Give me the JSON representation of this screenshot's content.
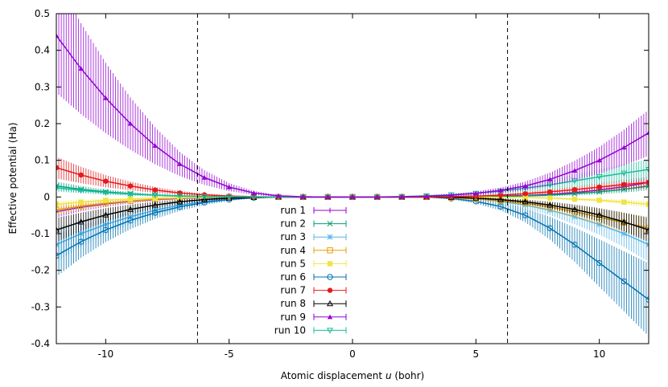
{
  "chart_data": {
    "type": "line",
    "title": "",
    "xlabel": "Atomic displacement u (bohr)",
    "xlabel_parts": {
      "before": "Atomic displacement ",
      "italic": "u",
      "after": " (bohr)"
    },
    "ylabel": "Effective potential (Ha)",
    "xlim": [
      -12,
      12
    ],
    "ylim": [
      -0.4,
      0.5
    ],
    "xticks": [
      -10,
      -5,
      0,
      5,
      10
    ],
    "xtick_labels": [
      "-10",
      "-5",
      "0",
      "5",
      "10"
    ],
    "yticks": [
      -0.4,
      -0.3,
      -0.2,
      -0.1,
      0,
      0.1,
      0.2,
      0.3,
      0.4,
      0.5
    ],
    "ytick_labels": [
      "-0.4",
      "-0.3",
      "-0.2",
      "-0.1",
      "0",
      "0.1",
      "0.2",
      "0.3",
      "0.4",
      "0.5"
    ],
    "grid": false,
    "legend_position": "center",
    "vertical_reference_lines": [
      -6.28,
      6.28
    ],
    "x": [
      -12,
      -11,
      -10,
      -9,
      -8,
      -7,
      -6,
      -5,
      -4,
      -3,
      -2,
      -1,
      0,
      1,
      2,
      3,
      4,
      5,
      6,
      7,
      8,
      9,
      10,
      11,
      12
    ],
    "series": [
      {
        "name": "run 1",
        "color": "#9400d3",
        "marker": "plus",
        "values": [
          -0.04,
          -0.028,
          -0.019,
          -0.012,
          -0.007,
          -0.004,
          -0.002,
          -0.001,
          0,
          0,
          0,
          0,
          0,
          0,
          0,
          0,
          0,
          0.001,
          0.002,
          0.004,
          0.007,
          0.012,
          0.019,
          0.028,
          0.04
        ]
      },
      {
        "name": "run 2",
        "color": "#009e73",
        "marker": "cross",
        "values": [
          0.03,
          0.021,
          0.014,
          0.009,
          0.005,
          0.003,
          0.0015,
          0.0007,
          0.0002,
          0,
          0,
          0,
          0,
          0,
          0,
          0,
          0.0002,
          0.0007,
          0.0015,
          0.003,
          0.005,
          0.009,
          0.014,
          0.021,
          0.03
        ]
      },
      {
        "name": "run 3",
        "color": "#56b4e9",
        "marker": "star",
        "values": [
          -0.13,
          -0.1,
          -0.075,
          -0.054,
          -0.036,
          -0.022,
          -0.012,
          -0.005,
          -0.001,
          0,
          0,
          0,
          0,
          0,
          0,
          0,
          -0.001,
          -0.005,
          -0.012,
          -0.022,
          -0.036,
          -0.054,
          -0.075,
          -0.1,
          -0.13
        ]
      },
      {
        "name": "run 4",
        "color": "#e69f00",
        "marker": "square-open",
        "values": [
          -0.035,
          -0.025,
          -0.017,
          -0.011,
          -0.006,
          -0.003,
          -0.0015,
          -0.0006,
          -0.0001,
          0,
          0,
          0,
          0,
          0,
          0,
          0,
          -0.002,
          -0.005,
          -0.01,
          -0.017,
          -0.027,
          -0.04,
          -0.055,
          -0.07,
          -0.085
        ]
      },
      {
        "name": "run 5",
        "color": "#f0e442",
        "marker": "square-filled",
        "values": [
          -0.02,
          -0.014,
          -0.009,
          -0.006,
          -0.003,
          -0.0015,
          -0.0007,
          -0.0002,
          0,
          0,
          0,
          0,
          0,
          0,
          0,
          0,
          0,
          -0.0002,
          -0.0007,
          -0.0015,
          -0.003,
          -0.006,
          -0.009,
          -0.014,
          -0.02
        ]
      },
      {
        "name": "run 6",
        "color": "#0072b2",
        "marker": "circle-open",
        "values": [
          -0.16,
          -0.122,
          -0.09,
          -0.064,
          -0.043,
          -0.027,
          -0.015,
          -0.007,
          -0.002,
          0,
          0,
          0,
          0,
          0,
          0,
          0,
          -0.004,
          -0.012,
          -0.026,
          -0.05,
          -0.085,
          -0.13,
          -0.18,
          -0.23,
          -0.28
        ]
      },
      {
        "name": "run 7",
        "color": "#e41a1c",
        "marker": "circle-filled",
        "values": [
          0.08,
          0.06,
          0.043,
          0.03,
          0.019,
          0.011,
          0.006,
          0.0025,
          0.0007,
          0,
          0,
          0,
          0,
          0,
          0,
          0,
          0.001,
          0.0025,
          0.005,
          0.009,
          0.014,
          0.02,
          0.027,
          0.034,
          0.04
        ]
      },
      {
        "name": "run 8",
        "color": "#000000",
        "marker": "triangle-open",
        "values": [
          -0.09,
          -0.068,
          -0.049,
          -0.034,
          -0.022,
          -0.013,
          -0.007,
          -0.003,
          -0.001,
          0,
          0,
          0,
          0,
          0,
          0,
          0,
          -0.001,
          -0.003,
          -0.007,
          -0.013,
          -0.022,
          -0.034,
          -0.049,
          -0.068,
          -0.09
        ]
      },
      {
        "name": "run 9",
        "color": "#9400d3",
        "marker": "triangle-filled",
        "values": [
          0.44,
          0.35,
          0.27,
          0.2,
          0.14,
          0.09,
          0.053,
          0.027,
          0.011,
          0.003,
          0.0005,
          0,
          0,
          0,
          0.0005,
          0.002,
          0.005,
          0.01,
          0.018,
          0.03,
          0.048,
          0.072,
          0.1,
          0.135,
          0.175
        ]
      },
      {
        "name": "run 10",
        "color": "#1abc9c",
        "marker": "triangle-down-open",
        "values": [
          0.025,
          0.018,
          0.012,
          0.008,
          0.005,
          0.0025,
          0.0012,
          0.0005,
          0.0001,
          0,
          0,
          0,
          0,
          0,
          0.001,
          0.003,
          0.006,
          0.01,
          0.016,
          0.024,
          0.033,
          0.044,
          0.055,
          0.065,
          0.075
        ]
      }
    ]
  }
}
